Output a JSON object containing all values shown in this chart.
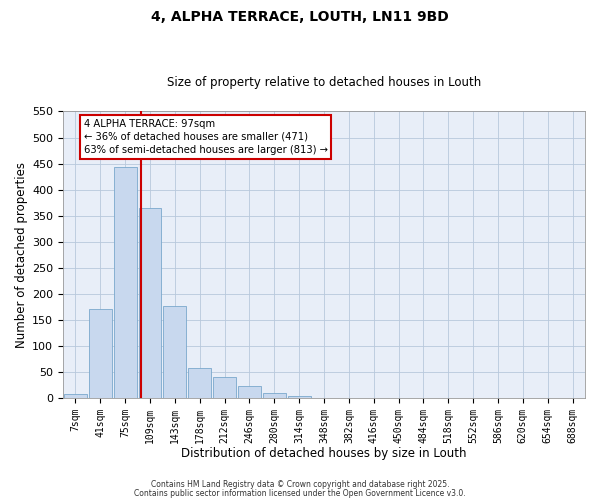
{
  "title": "4, ALPHA TERRACE, LOUTH, LN11 9BD",
  "subtitle": "Size of property relative to detached houses in Louth",
  "xlabel": "Distribution of detached houses by size in Louth",
  "ylabel": "Number of detached properties",
  "bar_labels": [
    "7sqm",
    "41sqm",
    "75sqm",
    "109sqm",
    "143sqm",
    "178sqm",
    "212sqm",
    "246sqm",
    "280sqm",
    "314sqm",
    "348sqm",
    "382sqm",
    "416sqm",
    "450sqm",
    "484sqm",
    "518sqm",
    "552sqm",
    "586sqm",
    "620sqm",
    "654sqm",
    "688sqm"
  ],
  "bar_values": [
    8,
    170,
    443,
    365,
    176,
    57,
    40,
    22,
    10,
    3,
    0,
    0,
    0,
    0,
    0,
    0,
    0,
    0,
    0,
    0,
    0
  ],
  "bar_color": "#c8d8ee",
  "bar_edge_color": "#7aa8cc",
  "grid_color": "#b8c8dc",
  "background_color": "#e8eef8",
  "vline_x": 2.62,
  "vline_color": "#cc0000",
  "annotation_title": "4 ALPHA TERRACE: 97sqm",
  "annotation_line1": "← 36% of detached houses are smaller (471)",
  "annotation_line2": "63% of semi-detached houses are larger (813) →",
  "annotation_box_facecolor": "#ffffff",
  "annotation_border_color": "#cc0000",
  "ylim": [
    0,
    550
  ],
  "yticks": [
    0,
    50,
    100,
    150,
    200,
    250,
    300,
    350,
    400,
    450,
    500,
    550
  ],
  "footer1": "Contains HM Land Registry data © Crown copyright and database right 2025.",
  "footer2": "Contains public sector information licensed under the Open Government Licence v3.0."
}
